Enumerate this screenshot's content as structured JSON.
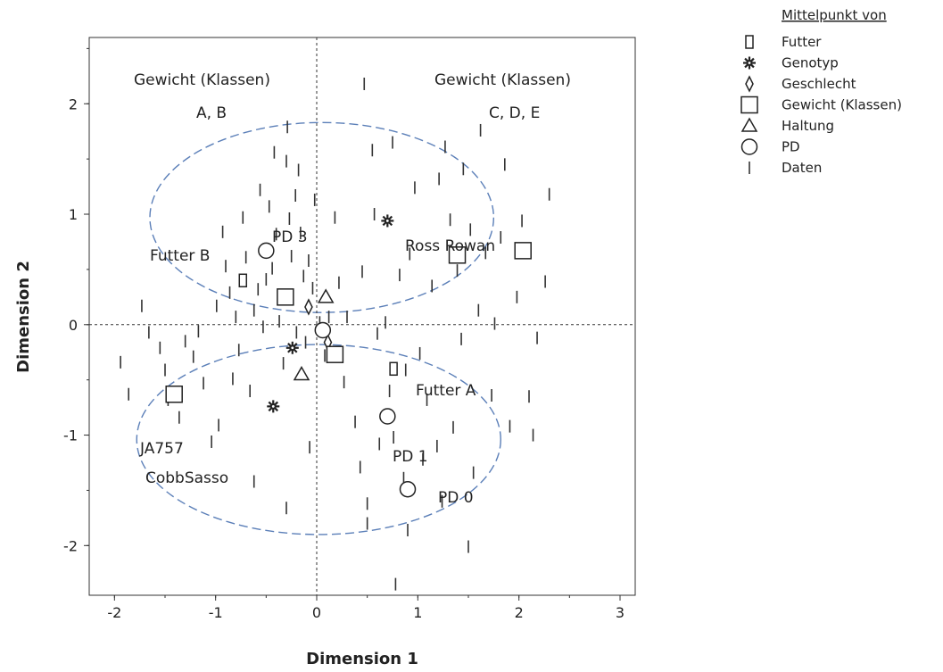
{
  "chart_data": {
    "type": "scatter",
    "title": "",
    "xlabel": "Dimension 1",
    "ylabel": "Dimension 2",
    "xlim": [
      -2.25,
      3.15
    ],
    "ylim": [
      -2.45,
      2.6
    ],
    "xticks": [
      -2,
      -1,
      0,
      1,
      2,
      3
    ],
    "yticks": [
      -2,
      -1,
      0,
      1,
      2
    ],
    "grid": false,
    "reference_lines": {
      "x": 0,
      "y": 0
    },
    "legend": {
      "title": "Mittelpunkt von",
      "placement": "outside-right",
      "entries": [
        {
          "name": "Futter",
          "marker": "small-rect"
        },
        {
          "name": "Genotyp",
          "marker": "star"
        },
        {
          "name": "Geschlecht",
          "marker": "diamond"
        },
        {
          "name": "Gewicht (Klassen)",
          "marker": "square"
        },
        {
          "name": "Haltung",
          "marker": "triangle"
        },
        {
          "name": "PD",
          "marker": "circle"
        },
        {
          "name": "Daten",
          "marker": "tick"
        }
      ]
    },
    "centroids": [
      {
        "group": "Futter",
        "label": "Futter B",
        "x": -0.73,
        "y": 0.4
      },
      {
        "group": "Futter",
        "label": "Futter A",
        "x": 0.76,
        "y": -0.4
      },
      {
        "group": "Genotyp",
        "label": "Ross Rowan",
        "x": 0.7,
        "y": 0.94
      },
      {
        "group": "Genotyp",
        "label": "JA757 CobbSasso",
        "x": -0.43,
        "y": -0.74
      },
      {
        "group": "Genotyp",
        "label": "",
        "x": -0.24,
        "y": -0.21
      },
      {
        "group": "Geschlecht",
        "label": "",
        "x": -0.08,
        "y": 0.16
      },
      {
        "group": "Geschlecht",
        "label": "",
        "x": 0.11,
        "y": -0.16
      },
      {
        "group": "Gewicht (Klassen)",
        "label": "A",
        "x": -1.41,
        "y": -0.63
      },
      {
        "group": "Gewicht (Klassen)",
        "label": "B",
        "x": -0.31,
        "y": 0.25
      },
      {
        "group": "Gewicht (Klassen)",
        "label": "C",
        "x": 0.18,
        "y": -0.27
      },
      {
        "group": "Gewicht (Klassen)",
        "label": "D",
        "x": 1.39,
        "y": 0.63
      },
      {
        "group": "Gewicht (Klassen)",
        "label": "E",
        "x": 2.04,
        "y": 0.67
      },
      {
        "group": "Haltung",
        "label": "",
        "x": 0.09,
        "y": 0.25
      },
      {
        "group": "Haltung",
        "label": "",
        "x": -0.15,
        "y": -0.45
      },
      {
        "group": "PD",
        "label": "PD 3",
        "x": -0.5,
        "y": 0.67
      },
      {
        "group": "PD",
        "label": "",
        "x": 0.06,
        "y": -0.05
      },
      {
        "group": "PD",
        "label": "PD 1",
        "x": 0.7,
        "y": -0.83
      },
      {
        "group": "PD",
        "label": "PD 0",
        "x": 0.9,
        "y": -1.49
      }
    ],
    "data_points": [
      [
        -1.94,
        -0.34
      ],
      [
        -1.86,
        -0.63
      ],
      [
        -1.73,
        0.17
      ],
      [
        -1.66,
        -0.07
      ],
      [
        -1.55,
        -0.21
      ],
      [
        -1.5,
        -0.41
      ],
      [
        -1.47,
        -0.68
      ],
      [
        -1.36,
        -0.84
      ],
      [
        -1.22,
        -0.29
      ],
      [
        -1.17,
        -0.06
      ],
      [
        -1.12,
        -0.53
      ],
      [
        -1.04,
        -1.06
      ],
      [
        -0.99,
        0.17
      ],
      [
        -0.97,
        -0.91
      ],
      [
        -0.93,
        0.84
      ],
      [
        -0.9,
        0.53
      ],
      [
        -0.86,
        0.29
      ],
      [
        -0.83,
        -0.49
      ],
      [
        -0.8,
        0.07
      ],
      [
        -0.77,
        -0.23
      ],
      [
        -0.73,
        0.97
      ],
      [
        -0.7,
        0.61
      ],
      [
        -0.66,
        -0.6
      ],
      [
        -0.62,
        0.13
      ],
      [
        -0.58,
        0.32
      ],
      [
        -0.56,
        1.22
      ],
      [
        -0.53,
        -0.02
      ],
      [
        -0.5,
        0.41
      ],
      [
        -0.47,
        1.07
      ],
      [
        -0.44,
        0.51
      ],
      [
        -0.42,
        1.56
      ],
      [
        -0.4,
        0.82
      ],
      [
        -0.37,
        0.03
      ],
      [
        -0.33,
        -0.35
      ],
      [
        -0.3,
        1.48
      ],
      [
        -0.29,
        1.79
      ],
      [
        -0.27,
        0.96
      ],
      [
        -0.25,
        0.62
      ],
      [
        -0.21,
        1.17
      ],
      [
        -0.2,
        -0.07
      ],
      [
        -0.18,
        1.4
      ],
      [
        -0.16,
        0.83
      ],
      [
        -0.13,
        0.44
      ],
      [
        -0.11,
        -0.16
      ],
      [
        -0.08,
        0.58
      ],
      [
        -0.07,
        -1.11
      ],
      [
        -0.04,
        0.33
      ],
      [
        -0.02,
        1.13
      ],
      [
        0.03,
        0.02
      ],
      [
        0.08,
        -0.28
      ],
      [
        0.12,
        0.07
      ],
      [
        0.18,
        0.97
      ],
      [
        0.22,
        0.38
      ],
      [
        0.27,
        -0.52
      ],
      [
        0.3,
        0.07
      ],
      [
        0.38,
        -0.88
      ],
      [
        0.43,
        -1.29
      ],
      [
        0.45,
        0.48
      ],
      [
        0.47,
        2.18
      ],
      [
        0.5,
        -1.62
      ],
      [
        0.5,
        -1.8
      ],
      [
        0.55,
        1.58
      ],
      [
        0.57,
        1.0
      ],
      [
        0.6,
        -0.08
      ],
      [
        0.62,
        -1.08
      ],
      [
        0.68,
        0.02
      ],
      [
        0.72,
        -0.6
      ],
      [
        0.75,
        1.65
      ],
      [
        0.76,
        -1.02
      ],
      [
        0.78,
        -2.35
      ],
      [
        0.82,
        0.45
      ],
      [
        0.86,
        -1.39
      ],
      [
        0.88,
        -0.41
      ],
      [
        0.9,
        -1.86
      ],
      [
        0.97,
        1.24
      ],
      [
        1.02,
        -0.26
      ],
      [
        1.05,
        -1.22
      ],
      [
        1.09,
        -0.68
      ],
      [
        1.14,
        0.35
      ],
      [
        1.19,
        -1.1
      ],
      [
        1.21,
        1.32
      ],
      [
        1.24,
        -1.6
      ],
      [
        1.32,
        0.95
      ],
      [
        1.35,
        -0.93
      ],
      [
        1.39,
        0.49
      ],
      [
        1.43,
        -0.13
      ],
      [
        1.45,
        1.41
      ],
      [
        1.5,
        -2.01
      ],
      [
        1.52,
        0.86
      ],
      [
        1.55,
        -1.34
      ],
      [
        1.6,
        0.13
      ],
      [
        1.62,
        1.76
      ],
      [
        1.67,
        0.65
      ],
      [
        1.73,
        -0.64
      ],
      [
        1.76,
        0.01
      ],
      [
        1.82,
        0.79
      ],
      [
        1.86,
        1.45
      ],
      [
        1.91,
        -0.92
      ],
      [
        1.98,
        0.25
      ],
      [
        2.03,
        0.94
      ],
      [
        2.1,
        -0.65
      ],
      [
        2.14,
        -1.0
      ],
      [
        2.18,
        -0.12
      ],
      [
        2.26,
        0.39
      ],
      [
        2.3,
        1.18
      ],
      [
        0.92,
        0.64
      ],
      [
        -0.62,
        -1.42
      ],
      [
        -0.3,
        -1.66
      ],
      [
        1.27,
        1.61
      ],
      [
        -1.3,
        -0.15
      ]
    ],
    "ellipses": [
      {
        "cx": 0.05,
        "cy": 0.97,
        "rx": 1.7,
        "ry": 0.86
      },
      {
        "cx": 0.02,
        "cy": -1.04,
        "rx": 1.8,
        "ry": 0.86
      }
    ]
  },
  "annotations": {
    "weight_left_line1": "Gewicht (Klassen)",
    "weight_left_line2": "A, B",
    "weight_right_line1": "Gewicht (Klassen)",
    "weight_right_line2": "C, D, E",
    "futter_b": "Futter B",
    "pd3": "PD 3",
    "ross": "Ross Rowan",
    "futter_a": "Futter A",
    "ja757": "JA757",
    "cobbsasso": "CobbSasso",
    "pd1": "PD 1",
    "pd0": "PD 0"
  },
  "colors": {
    "ellipse": "#5b7fb8",
    "marker": "#222222",
    "tick_mark": "#333333"
  }
}
